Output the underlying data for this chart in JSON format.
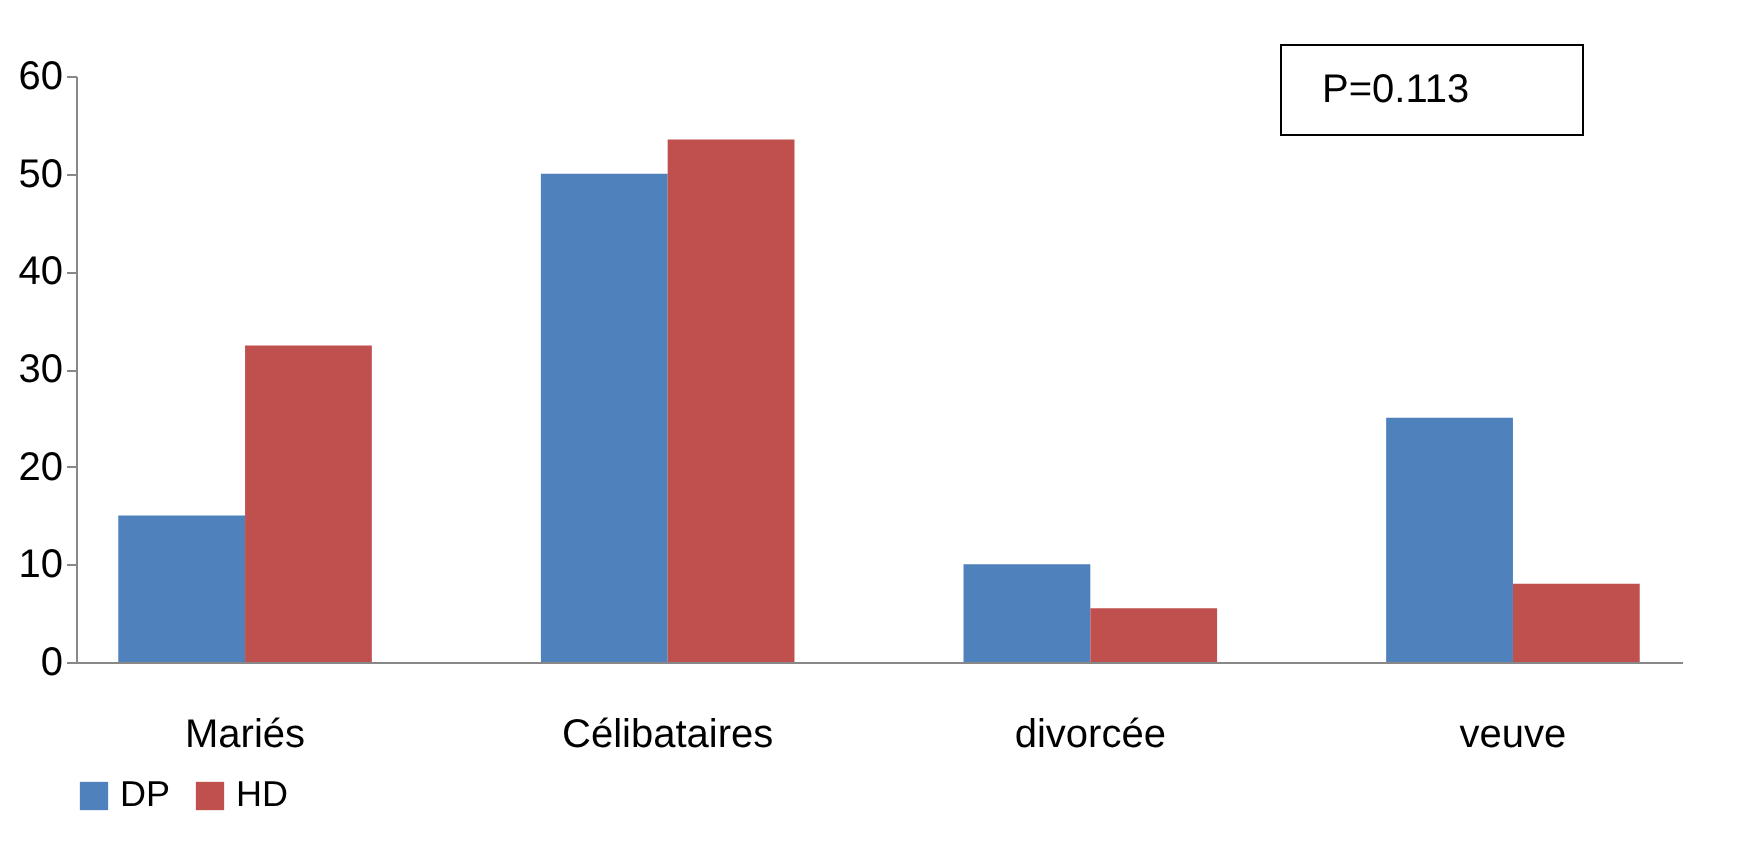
{
  "chart_data": {
    "type": "bar",
    "categories": [
      "Mariés",
      "Célibataires",
      "divorcée",
      "veuve"
    ],
    "series": [
      {
        "name": "DP",
        "color": "#4f81bd",
        "values": [
          15,
          50,
          10,
          25
        ]
      },
      {
        "name": "HD",
        "color": "#c0504d",
        "values": [
          32.4,
          53.5,
          5.5,
          8
        ]
      }
    ],
    "ylim": [
      0,
      60
    ],
    "yticks": [
      0,
      10,
      20,
      30,
      40,
      50,
      60
    ],
    "grid": false,
    "legend": "bottom",
    "annotations": [
      "P=0.113"
    ]
  }
}
